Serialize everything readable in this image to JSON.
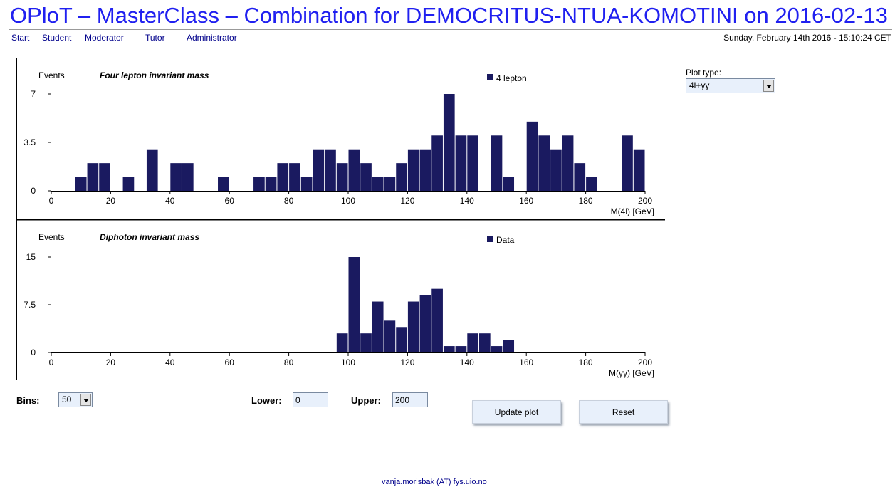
{
  "page_title": "OPloT – MasterClass – Combination for DEMOCRITUS-NTUA-KOMOTINI on 2016-02-13",
  "nav": [
    "Start",
    "Student",
    "Moderator",
    "Tutor",
    "Administrator"
  ],
  "datetime": "Sunday, February 14th 2016 - 15:10:24 CET",
  "plot_type": {
    "label": "Plot type:",
    "value": "4l+γγ"
  },
  "form": {
    "bins_label": "Bins:",
    "bins_value": "50",
    "lower_label": "Lower:",
    "lower_value": "0",
    "upper_label": "Upper:",
    "upper_value": "200",
    "update_label": "Update plot",
    "reset_label": "Reset"
  },
  "footer": "vanja.morisbak (AT) fys.uio.no",
  "colors": {
    "bar": "#1a1a60",
    "title": "#2020f0",
    "link": "#00008b"
  },
  "chart_data": [
    {
      "type": "bar",
      "title": "Four lepton invariant mass",
      "ylabel": "Events",
      "xlabel": "M(4l) [GeV]",
      "legend": "4 lepton",
      "legend_position": "top-right",
      "xlim": [
        0,
        200
      ],
      "ylim": [
        0,
        7
      ],
      "yticks": [
        "0",
        "3.5",
        "7"
      ],
      "xticks": [
        "0",
        "20",
        "40",
        "60",
        "80",
        "100",
        "120",
        "140",
        "160",
        "180",
        "200"
      ],
      "bin_width": 4,
      "values": [
        0,
        0,
        1,
        2,
        2,
        0,
        1,
        0,
        3,
        0,
        2,
        2,
        0,
        0,
        1,
        0,
        0,
        1,
        1,
        2,
        2,
        1,
        3,
        3,
        2,
        3,
        2,
        1,
        1,
        2,
        3,
        3,
        4,
        7,
        4,
        4,
        0,
        4,
        1,
        0,
        5,
        4,
        3,
        4,
        2,
        1,
        0,
        0,
        4,
        3
      ]
    },
    {
      "type": "bar",
      "title": "Diphoton invariant mass",
      "ylabel": "Events",
      "xlabel": "M(γγ) [GeV]",
      "legend": "Data",
      "legend_position": "top-right",
      "xlim": [
        0,
        200
      ],
      "ylim": [
        0,
        15
      ],
      "yticks": [
        "0",
        "7.5",
        "15"
      ],
      "xticks": [
        "0",
        "20",
        "40",
        "60",
        "80",
        "100",
        "120",
        "140",
        "160",
        "180",
        "200"
      ],
      "bin_width": 4,
      "values": [
        0,
        0,
        0,
        0,
        0,
        0,
        0,
        0,
        0,
        0,
        0,
        0,
        0,
        0,
        0,
        0,
        0,
        0,
        0,
        0,
        0,
        0,
        0,
        0,
        3,
        15,
        3,
        8,
        5,
        4,
        8,
        9,
        10,
        1,
        1,
        3,
        3,
        1,
        2,
        0,
        0,
        0,
        0,
        0,
        0,
        0,
        0,
        0,
        0,
        0
      ]
    }
  ]
}
